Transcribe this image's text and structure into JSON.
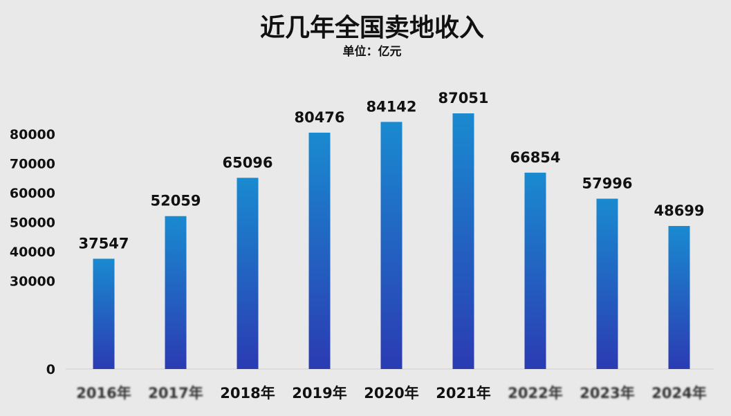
{
  "chart_data": {
    "type": "bar",
    "title": "近几年全国卖地收入",
    "subtitle": "单位：亿元",
    "categories": [
      "2016年",
      "2017年",
      "2018年",
      "2019年",
      "2020年",
      "2021年",
      "2022年",
      "2023年",
      "2024年"
    ],
    "obscured_categories": [
      0,
      1,
      6,
      7,
      8
    ],
    "values": [
      37547,
      52059,
      65096,
      80476,
      84142,
      87051,
      66854,
      57996,
      48699
    ],
    "yticks": [
      0,
      30000,
      40000,
      50000,
      60000,
      70000,
      80000
    ],
    "ylim": [
      0,
      89000
    ],
    "grid": false,
    "legend": "none",
    "colors": {
      "bar_top": "#1a8ad0",
      "bar_bottom": "#2b3bb2",
      "background": "#e9e9e9"
    }
  }
}
